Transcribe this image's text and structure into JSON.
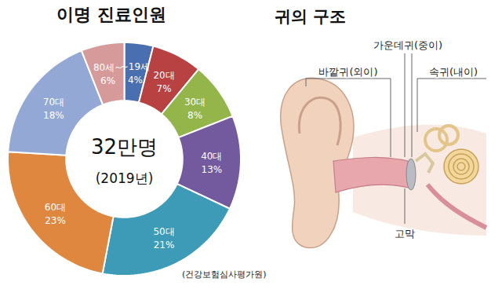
{
  "chart_data": {
    "type": "donut",
    "title": "이명 진료인원",
    "categories": [
      "~19세",
      "20대",
      "30대",
      "40대",
      "50대",
      "60대",
      "70대",
      "80세~"
    ],
    "values": [
      4,
      7,
      8,
      13,
      21,
      23,
      18,
      6
    ],
    "value_labels": [
      "4%",
      "7%",
      "8%",
      "13%",
      "21%",
      "23%",
      "18%",
      "6%"
    ],
    "colors": [
      "#4a6fb0",
      "#b84242",
      "#93b54a",
      "#735a9e",
      "#3d9bb8",
      "#e0873f",
      "#93a8d4",
      "#d79a9a"
    ],
    "data_labels": true,
    "annotations": [
      "32만명",
      "(2019년)"
    ],
    "source": "(건강보험심사평가원)"
  },
  "diagram": {
    "title": "귀의 구조",
    "labels": {
      "outer": "바깥귀(외이)",
      "middle": "가운데귀(중이)",
      "inner": "속귀(내이)",
      "eardrum": "고막"
    }
  }
}
